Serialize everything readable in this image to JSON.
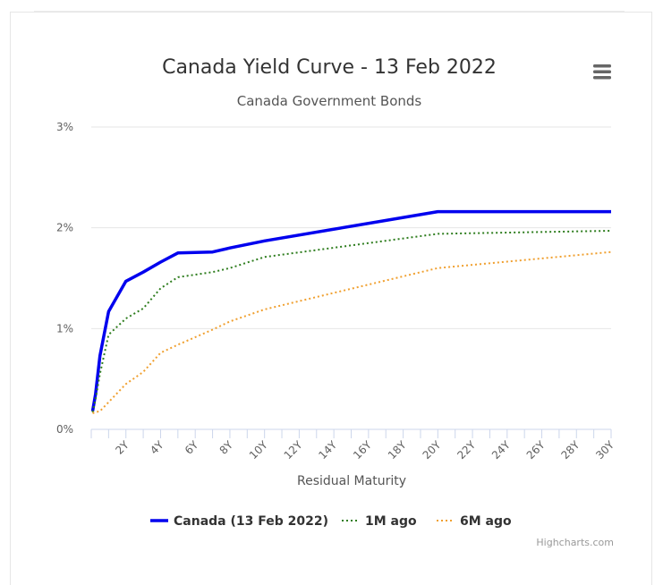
{
  "chart_data": {
    "type": "line",
    "title": "Canada Yield Curve - 13 Feb 2022",
    "subtitle": "Canada Government Bonds",
    "xlabel": "Residual Maturity",
    "ylabel": "",
    "x_unit": "years",
    "xlim": [
      0,
      30
    ],
    "ylim": [
      0,
      3
    ],
    "y_ticks": [
      "0%",
      "1%",
      "2%",
      "3%"
    ],
    "x_ticks": [
      "2Y",
      "4Y",
      "6Y",
      "8Y",
      "10Y",
      "12Y",
      "14Y",
      "16Y",
      "18Y",
      "20Y",
      "22Y",
      "24Y",
      "26Y",
      "28Y",
      "30Y"
    ],
    "grid": "horizontal",
    "legend_position": "bottom",
    "series": [
      {
        "name": "Canada (13 Feb 2022)",
        "color": "#0000ee",
        "style": "solid",
        "points": [
          [
            0.08,
            0.18
          ],
          [
            0.25,
            0.35
          ],
          [
            0.5,
            0.73
          ],
          [
            1,
            1.17
          ],
          [
            2,
            1.47
          ],
          [
            3,
            1.56
          ],
          [
            4,
            1.66
          ],
          [
            5,
            1.75
          ],
          [
            7,
            1.76
          ],
          [
            8,
            1.8
          ],
          [
            10,
            1.87
          ],
          [
            20,
            2.16
          ],
          [
            30,
            2.16
          ]
        ]
      },
      {
        "name": "1M ago",
        "color": "#2e7d1e",
        "style": "dotted",
        "points": [
          [
            0.08,
            0.17
          ],
          [
            0.25,
            0.3
          ],
          [
            0.5,
            0.55
          ],
          [
            1,
            0.94
          ],
          [
            2,
            1.1
          ],
          [
            3,
            1.2
          ],
          [
            4,
            1.4
          ],
          [
            5,
            1.51
          ],
          [
            7,
            1.56
          ],
          [
            8,
            1.6
          ],
          [
            10,
            1.71
          ],
          [
            20,
            1.94
          ],
          [
            30,
            1.97
          ]
        ]
      },
      {
        "name": "6M ago",
        "color": "#f0a030",
        "style": "dotted",
        "points": [
          [
            0.08,
            0.16
          ],
          [
            0.25,
            0.17
          ],
          [
            0.5,
            0.18
          ],
          [
            1,
            0.27
          ],
          [
            2,
            0.45
          ],
          [
            3,
            0.57
          ],
          [
            4,
            0.76
          ],
          [
            5,
            0.84
          ],
          [
            7,
            0.99
          ],
          [
            8,
            1.07
          ],
          [
            10,
            1.19
          ],
          [
            20,
            1.6
          ],
          [
            30,
            1.76
          ]
        ]
      }
    ]
  },
  "credits": "Highcharts.com",
  "menu": {
    "icon": "hamburger-menu-icon"
  }
}
